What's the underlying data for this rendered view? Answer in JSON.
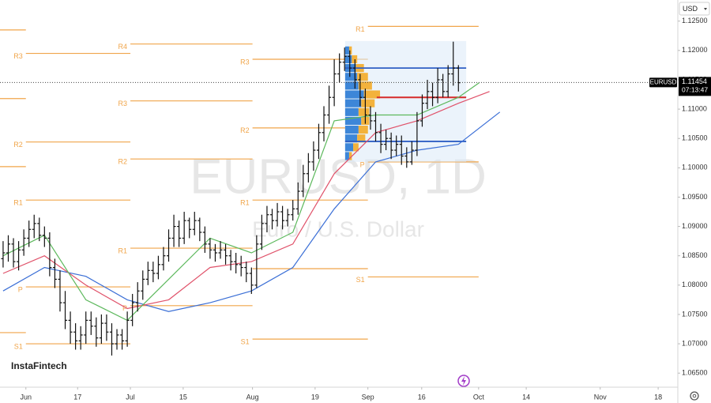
{
  "chart_data": {
    "type": "ohlc",
    "symbol_tag": "EURUSD",
    "currency": "USD",
    "watermark_title": "EURUSD, 1D",
    "watermark_subtitle": "Euro / U.S. Dollar",
    "brand": "InstaFintech",
    "color": "#111111",
    "x": [
      0,
      1,
      2,
      3,
      4,
      5,
      6,
      7,
      8,
      9,
      10,
      11,
      12,
      13,
      14,
      15,
      16,
      17,
      18,
      19,
      20,
      21,
      22,
      23,
      24,
      25,
      26,
      27,
      28,
      29,
      30,
      31,
      32,
      33,
      34,
      35,
      36,
      37,
      38,
      39,
      40,
      41,
      42,
      43,
      44,
      45,
      46,
      47,
      48,
      49,
      50,
      51,
      52,
      53,
      54,
      55,
      56,
      57,
      58,
      59,
      60,
      61,
      62,
      63,
      64,
      65,
      66,
      67,
      68,
      69,
      70,
      71,
      72,
      73,
      74,
      75,
      76,
      77,
      78,
      79,
      80,
      81,
      82,
      83,
      84,
      85,
      86,
      87,
      88
    ],
    "open": [
      1.0845,
      1.0855,
      1.087,
      1.084,
      1.086,
      1.088,
      1.0895,
      1.0905,
      1.0885,
      1.088,
      1.083,
      1.081,
      1.077,
      1.074,
      1.072,
      1.0705,
      1.0715,
      1.074,
      1.073,
      1.071,
      1.0735,
      1.072,
      1.07,
      1.0715,
      1.0705,
      1.074,
      1.077,
      1.079,
      1.081,
      1.0825,
      1.082,
      1.0835,
      1.085,
      1.088,
      1.09,
      1.088,
      1.091,
      1.0895,
      1.091,
      1.089,
      1.087,
      1.086,
      1.0855,
      1.086,
      1.085,
      1.084,
      1.0835,
      1.083,
      1.082,
      1.08,
      1.087,
      1.0905,
      1.092,
      1.091,
      1.0925,
      1.091,
      1.092,
      1.093,
      1.096,
      1.099,
      1.101,
      1.103,
      1.106,
      1.109,
      1.112,
      1.116,
      1.118,
      1.119,
      1.117,
      1.115,
      1.112,
      1.109,
      1.108,
      1.106,
      1.104,
      1.105,
      1.103,
      1.104,
      1.102,
      1.101,
      1.103,
      1.108,
      1.111,
      1.113,
      1.112,
      1.115,
      1.113,
      1.116,
      1.117
    ],
    "high": [
      1.0875,
      1.0885,
      1.088,
      1.0875,
      1.0895,
      1.091,
      1.092,
      1.0915,
      1.09,
      1.089,
      1.0845,
      1.0825,
      1.079,
      1.0755,
      1.0735,
      1.073,
      1.0755,
      1.0755,
      1.0745,
      1.075,
      1.075,
      1.0735,
      1.0725,
      1.0725,
      1.0755,
      1.0785,
      1.0805,
      1.0825,
      1.084,
      1.084,
      1.085,
      1.0865,
      1.0895,
      1.092,
      1.091,
      1.0925,
      1.0915,
      1.0925,
      1.0915,
      1.09,
      1.088,
      1.087,
      1.0875,
      1.087,
      1.086,
      1.0855,
      1.085,
      1.084,
      1.083,
      1.0885,
      1.092,
      1.0935,
      1.093,
      1.094,
      1.0935,
      1.093,
      1.0945,
      1.0975,
      1.1005,
      1.1025,
      1.1045,
      1.1075,
      1.1105,
      1.114,
      1.1185,
      1.1195,
      1.1205,
      1.12,
      1.1185,
      1.116,
      1.1135,
      1.1105,
      1.1095,
      1.1075,
      1.1065,
      1.106,
      1.1055,
      1.1055,
      1.1035,
      1.1045,
      1.1095,
      1.1125,
      1.115,
      1.1145,
      1.117,
      1.116,
      1.1175,
      1.1215,
      1.1175
    ],
    "low": [
      1.083,
      1.084,
      1.083,
      1.0825,
      1.085,
      1.0865,
      1.088,
      1.0875,
      1.0865,
      1.0815,
      1.0795,
      1.0755,
      1.0725,
      1.07,
      1.069,
      1.069,
      1.07,
      1.0715,
      1.0695,
      1.07,
      1.0705,
      1.068,
      1.069,
      1.069,
      1.0695,
      1.073,
      1.0755,
      1.0775,
      1.08,
      1.0805,
      1.081,
      1.0825,
      1.084,
      1.0865,
      1.0865,
      1.087,
      1.088,
      1.0885,
      1.0875,
      1.0855,
      1.0845,
      1.084,
      1.0845,
      1.0835,
      1.0825,
      1.082,
      1.0815,
      1.0805,
      1.0785,
      1.0795,
      1.086,
      1.089,
      1.0895,
      1.09,
      1.0895,
      1.09,
      1.091,
      1.092,
      1.095,
      1.0975,
      1.0995,
      1.1015,
      1.1045,
      1.1075,
      1.1105,
      1.1145,
      1.1165,
      1.1155,
      1.1135,
      1.1105,
      1.1075,
      1.1065,
      1.1045,
      1.1025,
      1.103,
      1.1015,
      1.102,
      1.1005,
      1.1,
      1.1005,
      1.102,
      1.107,
      1.11,
      1.1105,
      1.111,
      1.112,
      1.112,
      1.114,
      1.113
    ],
    "close": [
      1.0855,
      1.087,
      1.084,
      1.086,
      1.088,
      1.0895,
      1.0905,
      1.0885,
      1.088,
      1.083,
      1.081,
      1.077,
      1.074,
      1.072,
      1.0705,
      1.0715,
      1.074,
      1.073,
      1.071,
      1.0735,
      1.072,
      1.07,
      1.0715,
      1.0705,
      1.074,
      1.077,
      1.079,
      1.081,
      1.0825,
      1.082,
      1.0835,
      1.085,
      1.088,
      1.09,
      1.088,
      1.091,
      1.0895,
      1.091,
      1.089,
      1.087,
      1.086,
      1.0855,
      1.086,
      1.085,
      1.084,
      1.0835,
      1.083,
      1.082,
      1.08,
      1.087,
      1.0905,
      1.092,
      1.091,
      1.0925,
      1.091,
      1.092,
      1.093,
      1.096,
      1.099,
      1.101,
      1.103,
      1.106,
      1.109,
      1.112,
      1.116,
      1.118,
      1.119,
      1.117,
      1.115,
      1.112,
      1.109,
      1.108,
      1.106,
      1.104,
      1.105,
      1.103,
      1.104,
      1.102,
      1.101,
      1.103,
      1.108,
      1.111,
      1.113,
      1.112,
      1.115,
      1.113,
      1.116,
      1.117,
      1.1145
    ],
    "xlim": [
      -0.6,
      130.4
    ],
    "xticks": [
      {
        "value": 4.4,
        "label": "Jun"
      },
      {
        "value": 14.4,
        "label": "17"
      },
      {
        "value": 24.6,
        "label": "Jul"
      },
      {
        "value": 34.8,
        "label": "15"
      },
      {
        "value": 48.2,
        "label": "Aug"
      },
      {
        "value": 60.3,
        "label": "19"
      },
      {
        "value": 70.5,
        "label": "Sep"
      },
      {
        "value": 80.9,
        "label": "16"
      },
      {
        "value": 91.9,
        "label": "Oct"
      },
      {
        "value": 101.1,
        "label": "14"
      },
      {
        "value": 115.4,
        "label": "Nov"
      },
      {
        "value": 126.6,
        "label": "18"
      }
    ],
    "ylim": [
      1.0626,
      1.1286
    ],
    "yticks": [
      {
        "value": 1.125,
        "label": "1.12500"
      },
      {
        "value": 1.12,
        "label": "1.12000"
      },
      {
        "value": 1.115,
        "label": "1.11500"
      },
      {
        "value": 1.11,
        "label": "1.11000"
      },
      {
        "value": 1.105,
        "label": "1.10500"
      },
      {
        "value": 1.1,
        "label": "1.10000"
      },
      {
        "value": 1.095,
        "label": "1.09500"
      },
      {
        "value": 1.09,
        "label": "1.09000"
      },
      {
        "value": 1.085,
        "label": "1.08500"
      },
      {
        "value": 1.08,
        "label": "1.08000"
      },
      {
        "value": 1.075,
        "label": "1.07500"
      },
      {
        "value": 1.07,
        "label": "1.07000"
      },
      {
        "value": 1.065,
        "label": "1.06500"
      }
    ],
    "last_price": 1.11454,
    "last_price_color": "#000000",
    "countdown": "07:13:47",
    "moving_averages": [
      {
        "color": "#3b6fd6",
        "x": [
          0,
          8,
          16,
          24,
          32,
          40,
          48,
          56,
          64,
          72,
          80,
          88,
          96
        ],
        "values": [
          1.079,
          1.083,
          1.0815,
          1.0775,
          1.0755,
          1.077,
          1.079,
          1.083,
          1.093,
          1.101,
          1.103,
          1.104,
          1.1095
        ]
      },
      {
        "color": "#e0526a",
        "x": [
          0,
          8,
          16,
          24,
          32,
          40,
          48,
          56,
          64,
          72,
          80,
          88,
          94
        ],
        "values": [
          1.082,
          1.085,
          1.08,
          1.076,
          1.0775,
          1.083,
          1.084,
          1.087,
          1.099,
          1.106,
          1.108,
          1.111,
          1.113
        ]
      },
      {
        "color": "#5cb85c",
        "x": [
          0,
          8,
          16,
          24,
          32,
          40,
          48,
          56,
          64,
          72,
          80,
          88,
          92
        ],
        "values": [
          1.085,
          1.0885,
          1.0775,
          1.074,
          1.081,
          1.088,
          1.0855,
          1.089,
          1.108,
          1.109,
          1.109,
          1.112,
          1.1145
        ]
      }
    ],
    "level_color": "#f0a54a",
    "levels": [
      {
        "label": null,
        "value": 1.1235,
        "x": [
          -0.6,
          4.4
        ]
      },
      {
        "label": null,
        "value": 1.1118,
        "x": [
          -0.6,
          4.4
        ]
      },
      {
        "label": null,
        "value": 1.1002,
        "x": [
          -0.6,
          4.4
        ]
      },
      {
        "label": null,
        "value": 1.0719,
        "x": [
          -0.6,
          4.4
        ]
      },
      {
        "label": "R3",
        "value": 1.1195,
        "x": [
          4.4,
          24.6
        ]
      },
      {
        "label": "R2",
        "value": 1.1044,
        "x": [
          4.4,
          24.6
        ]
      },
      {
        "label": "R1",
        "value": 1.0945,
        "x": [
          4.4,
          24.6
        ]
      },
      {
        "label": "P",
        "value": 1.0797,
        "x": [
          4.4,
          24.6
        ]
      },
      {
        "label": "S1",
        "value": 1.07,
        "x": [
          4.4,
          24.6
        ]
      },
      {
        "label": "R4",
        "value": 1.1211,
        "x": [
          24.6,
          48.2
        ]
      },
      {
        "label": "R3",
        "value": 1.1114,
        "x": [
          24.6,
          48.2
        ]
      },
      {
        "label": "R2",
        "value": 1.1015,
        "x": [
          24.6,
          48.2
        ]
      },
      {
        "label": "R1",
        "value": 1.0863,
        "x": [
          24.6,
          48.2
        ]
      },
      {
        "label": "P",
        "value": 1.0765,
        "x": [
          24.6,
          48.2
        ]
      },
      {
        "label": "R3",
        "value": 1.1185,
        "x": [
          48.2,
          70.5
        ]
      },
      {
        "label": "R2",
        "value": 1.1068,
        "x": [
          48.2,
          70.5
        ]
      },
      {
        "label": "R1",
        "value": 1.0945,
        "x": [
          48.2,
          70.5
        ]
      },
      {
        "label": null,
        "value": 1.0828,
        "x": [
          48.2,
          70.5
        ]
      },
      {
        "label": "S1",
        "value": 1.0708,
        "x": [
          48.2,
          70.5
        ]
      },
      {
        "label": "R1",
        "value": 1.1241,
        "x": [
          70.5,
          91.9
        ]
      },
      {
        "label": "P",
        "value": 1.101,
        "x": [
          70.5,
          91.9
        ]
      },
      {
        "label": "S1",
        "value": 1.0814,
        "x": [
          70.5,
          91.9
        ]
      }
    ],
    "volume_profile": {
      "x": [
        66.1,
        89.5
      ],
      "range": [
        1.101,
        1.1216
      ],
      "value_area": [
        1.1045,
        1.117
      ],
      "poc": 1.112,
      "up_color": "#3d86d8",
      "down_color": "#f3b23c",
      "prices": [
        1.12,
        1.1185,
        1.117,
        1.1155,
        1.114,
        1.1125,
        1.111,
        1.1095,
        1.108,
        1.1065,
        1.105,
        1.1035,
        1.102
      ],
      "up": [
        3,
        5,
        8,
        9,
        10,
        14,
        12,
        10,
        12,
        10,
        9,
        6,
        3
      ],
      "down": [
        2,
        4,
        6,
        8,
        10,
        12,
        10,
        8,
        6,
        7,
        6,
        4,
        2
      ]
    }
  }
}
